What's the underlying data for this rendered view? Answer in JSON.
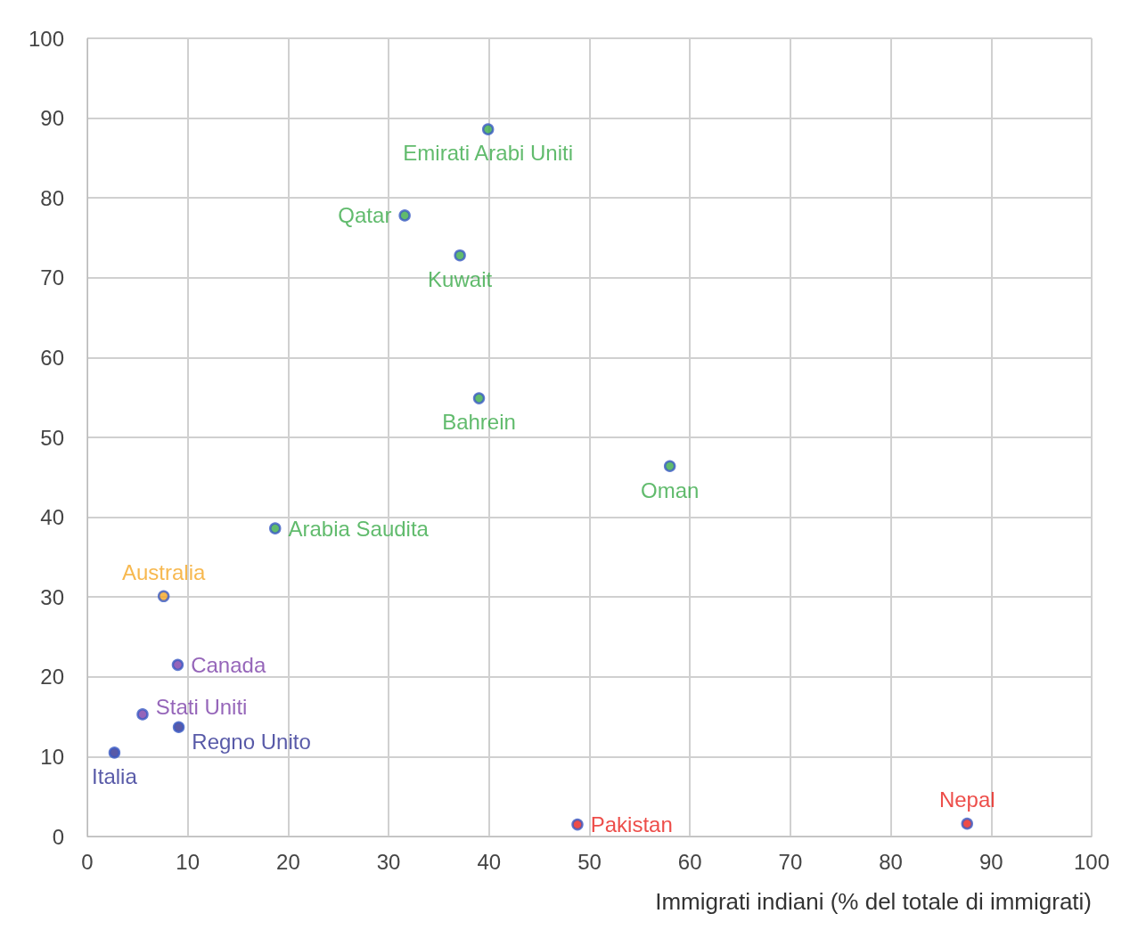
{
  "chart_data": {
    "type": "scatter",
    "xlabel": "Immigrati indiani (% del totale di immigrati)",
    "xlim": [
      0,
      100
    ],
    "xticks": [
      0,
      10,
      20,
      30,
      40,
      50,
      60,
      70,
      80,
      90,
      100
    ],
    "ylim": [
      0,
      100
    ],
    "yticks": [
      0,
      10,
      20,
      30,
      40,
      50,
      60,
      70,
      80,
      90,
      100
    ],
    "grid": true,
    "legend": false,
    "marker": "circle",
    "series": [
      {
        "name": "Emirati Arabi Uniti",
        "color": "#3aaa48",
        "x": [
          39.9
        ],
        "values": [
          88.6
        ]
      },
      {
        "name": "Qatar",
        "color": "#3aaa48",
        "x": [
          31.6
        ],
        "values": [
          77.8
        ]
      },
      {
        "name": "Kuwait",
        "color": "#3aaa48",
        "x": [
          37.1
        ],
        "values": [
          72.8
        ]
      },
      {
        "name": "Bahrein",
        "color": "#3aaa48",
        "x": [
          39.0
        ],
        "values": [
          54.9
        ]
      },
      {
        "name": "Oman",
        "color": "#3aaa48",
        "x": [
          58.0
        ],
        "values": [
          46.4
        ]
      },
      {
        "name": "Arabia Saudita",
        "color": "#3aaa48",
        "x": [
          18.7
        ],
        "values": [
          38.6
        ]
      },
      {
        "name": "Australia",
        "color": "#f5a623",
        "x": [
          7.6
        ],
        "values": [
          30.1
        ]
      },
      {
        "name": "Canada",
        "color": "#7b3fa8",
        "x": [
          9.0
        ],
        "values": [
          21.5
        ]
      },
      {
        "name": "Stati Uniti",
        "color": "#7b3fa8",
        "x": [
          5.5
        ],
        "values": [
          15.3
        ]
      },
      {
        "name": "Regno Unito",
        "color": "#2e3192",
        "x": [
          9.1
        ],
        "values": [
          13.7
        ]
      },
      {
        "name": "Italia",
        "color": "#2e3192",
        "x": [
          2.7
        ],
        "values": [
          10.5
        ]
      },
      {
        "name": "Pakistan",
        "color": "#e8211c",
        "x": [
          48.8
        ],
        "values": [
          1.5
        ]
      },
      {
        "name": "Nepal",
        "color": "#e8211c",
        "x": [
          87.6
        ],
        "values": [
          1.6
        ]
      }
    ]
  }
}
